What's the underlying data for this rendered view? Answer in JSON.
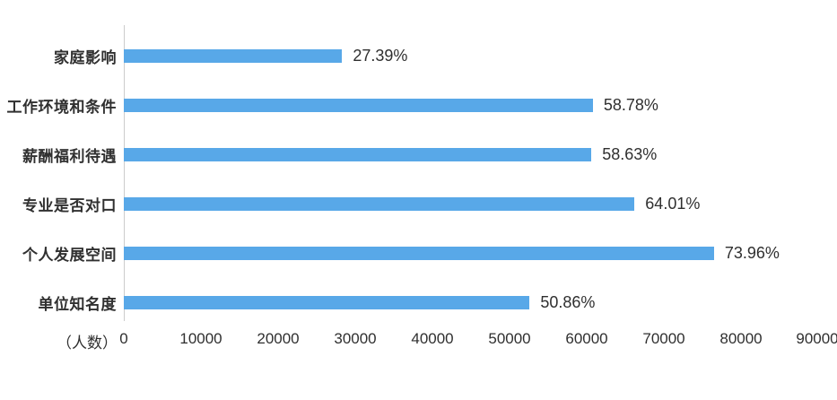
{
  "chart_data": {
    "type": "bar",
    "orientation": "horizontal",
    "title": "",
    "categories": [
      "家庭影响",
      "工作环境和条件",
      "薪酬福利待遇",
      "专业是否对口",
      "个人发展空间",
      "单位知名度"
    ],
    "value_labels": [
      "27.39%",
      "58.78%",
      "58.63%",
      "64.01%",
      "73.96%",
      "50.86%"
    ],
    "percentages": [
      27.39,
      58.78,
      58.63,
      64.01,
      73.96,
      50.86
    ],
    "values_people_est": [
      28300,
      60800,
      60600,
      66200,
      76500,
      52600
    ],
    "x_axis": {
      "unit_label": "（人数）",
      "ticks": [
        0,
        10000,
        20000,
        30000,
        40000,
        50000,
        60000,
        70000,
        80000,
        90000
      ],
      "tick_labels": [
        "0",
        "10000",
        "20000",
        "30000",
        "40000",
        "50000",
        "60000",
        "70000",
        "80000",
        "90000"
      ],
      "min": 0,
      "max": 90000
    },
    "legend": "none",
    "grid": "off",
    "bar_color": "#58a8e8",
    "axis_line_color": "#cccccc",
    "text_color": "#2f2f2f",
    "background": "#ffffff"
  }
}
